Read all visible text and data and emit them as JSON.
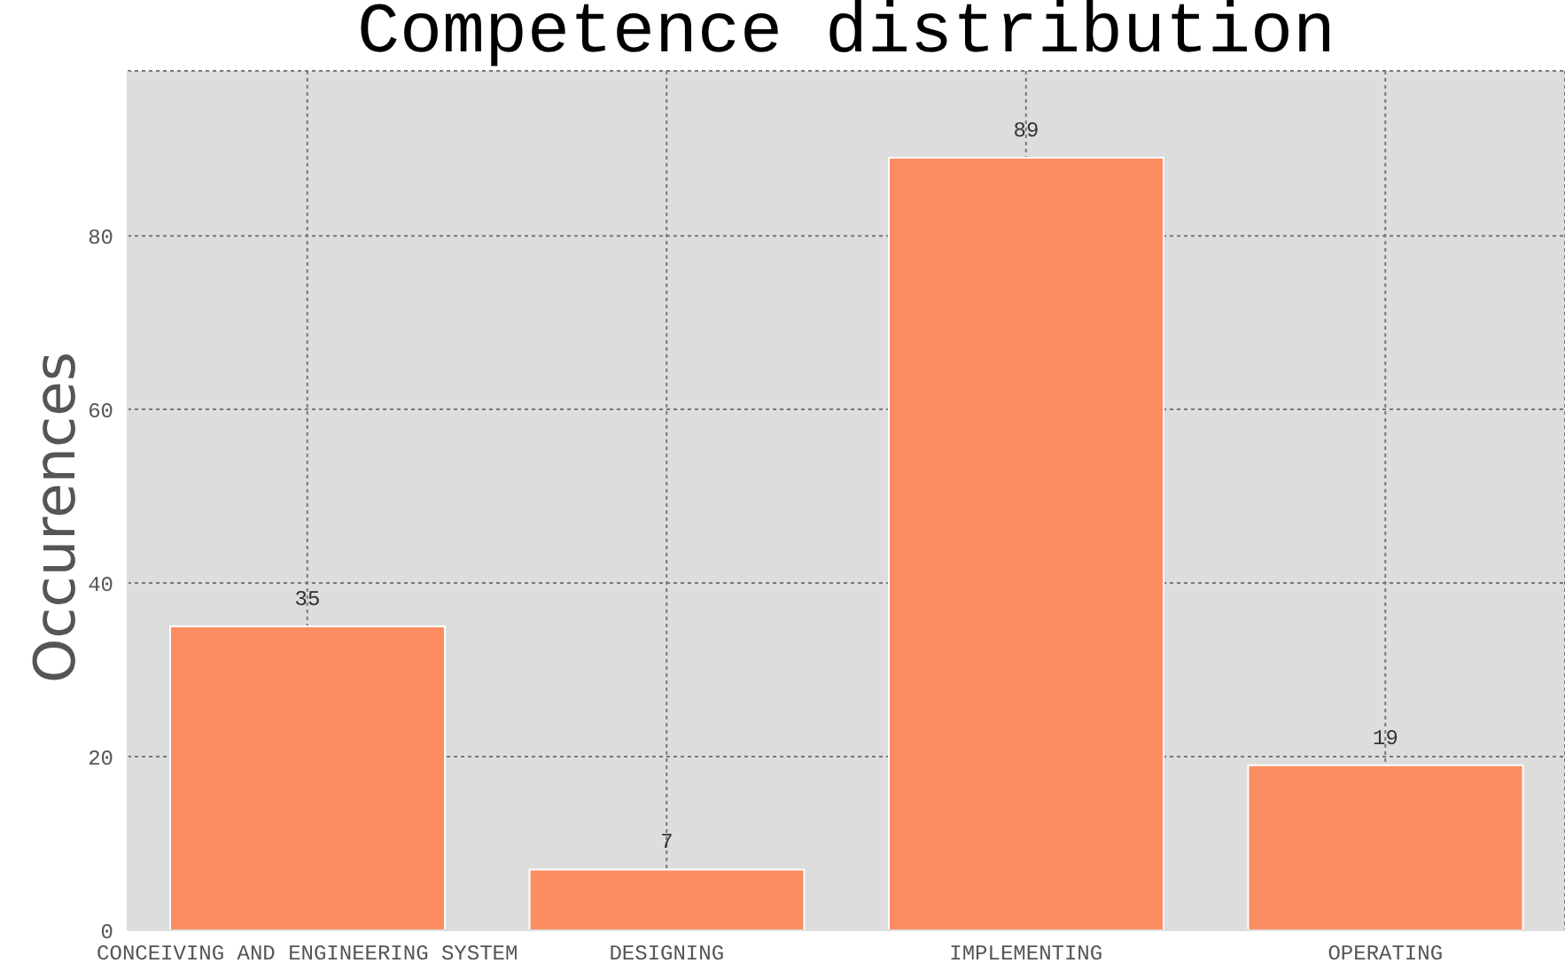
{
  "chart_data": {
    "type": "bar",
    "title": "Competence distribution",
    "ylabel": "Occurences",
    "categories": [
      "CONCEIVING AND ENGINEERING SYSTEM",
      "DESIGNING",
      "IMPLEMENTING",
      "OPERATING"
    ],
    "values": [
      35,
      7,
      89,
      19
    ],
    "color": "#fc8d62",
    "ylim": [
      0,
      99
    ],
    "yticks": [
      0,
      20,
      40,
      60,
      80
    ],
    "grid": true,
    "data_labels": true
  }
}
